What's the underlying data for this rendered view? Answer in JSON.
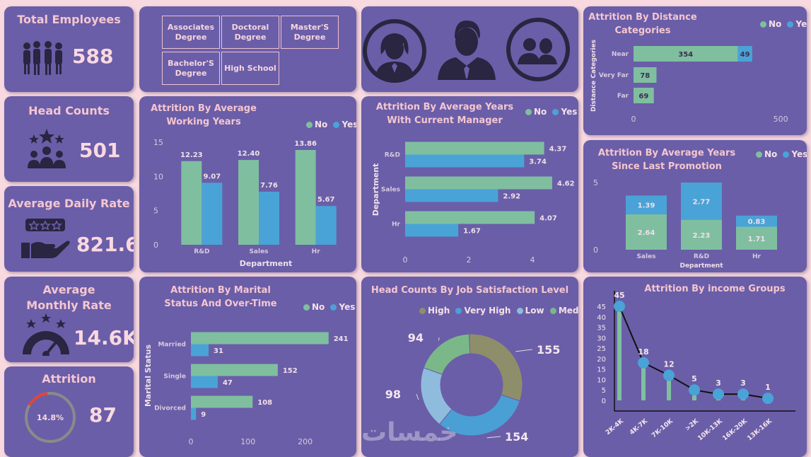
{
  "colors": {
    "no": "#7fbf9f",
    "yes": "#4aa3d6",
    "high": "#8f8e6a",
    "very_high": "#4a9fd4",
    "low": "#8fbcdc",
    "medium": "#7ab889",
    "accent": "#f5c6d0",
    "attrition_arc": "#e0453a"
  },
  "kpis": {
    "total_employees": {
      "title": "Total Employees",
      "value": "588",
      "icon": "people-group-icon"
    },
    "head_counts": {
      "title": "Head Counts",
      "value": "501",
      "icon": "team-stars-icon"
    },
    "avg_daily_rate": {
      "title": "Average Daily Rate",
      "value": "821.6",
      "icon": "hand-rating-icon"
    },
    "avg_monthly_rate": {
      "title": "Average Monthly Rate",
      "value": "14.6K",
      "icon": "gauge-stars-icon"
    },
    "attrition": {
      "title": "Attrition",
      "value": "87",
      "pct": "14.8%",
      "fraction": 0.148
    }
  },
  "education_filter": {
    "buttons": [
      "Associates Degree",
      "Doctoral Degree",
      "Master'S Degree",
      "Bachelor'S Degree",
      "High School"
    ]
  },
  "gender_icons": [
    "female-user-icon",
    "male-user-icon",
    "users-icon"
  ],
  "watermark": "خمسات",
  "chart_data": [
    {
      "id": "working_years",
      "type": "bar",
      "title": "Attrition  By Average Working Years",
      "xlabel": "Department",
      "ylabel": "",
      "categories": [
        "R&D",
        "Sales",
        "Hr"
      ],
      "series": [
        {
          "name": "No",
          "values": [
            12.23,
            12.4,
            13.86
          ]
        },
        {
          "name": "Yes",
          "values": [
            9.07,
            7.76,
            5.67
          ]
        }
      ],
      "ylim": [
        0,
        15
      ],
      "yticks": [
        0,
        5,
        10,
        15
      ],
      "legend": [
        "No",
        "Yes"
      ]
    },
    {
      "id": "current_manager",
      "type": "bar",
      "orientation": "horizontal",
      "title": "Attrition  By Average Years With Current Manager",
      "xlabel": "",
      "ylabel": "Department",
      "categories": [
        "R&D",
        "Sales",
        "Hr"
      ],
      "series": [
        {
          "name": "No",
          "values": [
            4.37,
            4.62,
            4.07
          ]
        },
        {
          "name": "Yes",
          "values": [
            3.74,
            2.92,
            1.67
          ]
        }
      ],
      "xlim": [
        0,
        5
      ],
      "xticks": [
        0,
        2,
        4
      ],
      "legend": [
        "No",
        "Yes"
      ]
    },
    {
      "id": "distance",
      "type": "bar",
      "orientation": "horizontal",
      "stacked": true,
      "title": "Attrition  By Distance Categories",
      "ylabel": "Distance Categories",
      "categories": [
        "Near",
        "Very Far",
        "Far"
      ],
      "series": [
        {
          "name": "No",
          "values": [
            354,
            78,
            69
          ]
        },
        {
          "name": "Yes",
          "values": [
            49,
            null,
            null
          ]
        }
      ],
      "xlim": [
        0,
        550
      ],
      "xticks": [
        0,
        500
      ],
      "legend": [
        "No",
        "Yes"
      ]
    },
    {
      "id": "promotion",
      "type": "bar",
      "stacked": true,
      "title": "Attrition  By Average Years Since Last Promotion",
      "xlabel": "Department",
      "categories": [
        "Sales",
        "R&D",
        "Hr"
      ],
      "series": [
        {
          "name": "No",
          "values": [
            2.64,
            2.23,
            1.71
          ]
        },
        {
          "name": "Yes",
          "values": [
            1.39,
            2.77,
            0.83
          ]
        }
      ],
      "ylim": [
        0,
        5
      ],
      "yticks": [
        0,
        5
      ],
      "legend": [
        "No",
        "Yes"
      ]
    },
    {
      "id": "marital",
      "type": "bar",
      "orientation": "horizontal",
      "title": "Attrition  By Marital Status And Over-Time",
      "ylabel": "Marital Status",
      "categories": [
        "Married",
        "Single",
        "Divorced"
      ],
      "series": [
        {
          "name": "No",
          "values": [
            241,
            152,
            108
          ]
        },
        {
          "name": "Yes",
          "values": [
            31,
            47,
            9
          ]
        }
      ],
      "xlim": [
        0,
        250
      ],
      "xticks": [
        0,
        100,
        200
      ],
      "legend": [
        "No",
        "Yes"
      ]
    },
    {
      "id": "satisfaction",
      "type": "pie",
      "donut": true,
      "title": "Head Counts By Job Satisfaction Level",
      "labels": [
        "High",
        "Very High",
        "Low",
        "Medium"
      ],
      "values": [
        155,
        154,
        98,
        94
      ],
      "legend": [
        "High",
        "Very High",
        "Low",
        "Medium"
      ]
    },
    {
      "id": "income",
      "type": "line",
      "title": "Attrition  By income Groups",
      "categories": [
        "2K-4K",
        "4K-7K",
        "7K-10K",
        ">2K",
        "10K-13K",
        "16K-20K",
        "13K-16K"
      ],
      "values": [
        45,
        18,
        12,
        5,
        3,
        3,
        1
      ],
      "ylim": [
        0,
        45
      ],
      "yticks": [
        0,
        5,
        10,
        15,
        20,
        25,
        30,
        35,
        40,
        45
      ]
    }
  ]
}
